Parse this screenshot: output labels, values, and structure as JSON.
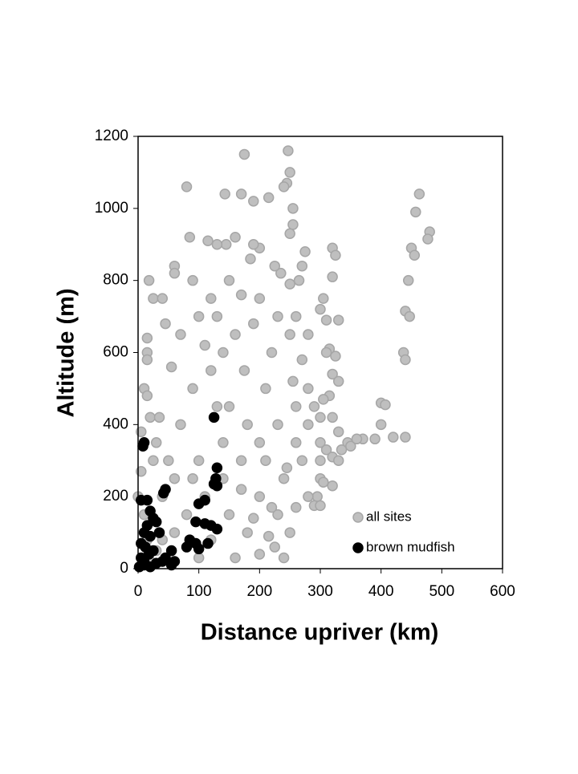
{
  "chart_data": {
    "type": "scatter",
    "xlabel": "Distance upriver (km)",
    "ylabel": "Altitude (m)",
    "xlim": [
      0,
      600
    ],
    "ylim": [
      0,
      1200
    ],
    "xticks": [
      0,
      100,
      200,
      300,
      400,
      500,
      600
    ],
    "yticks": [
      0,
      200,
      400,
      600,
      800,
      1000,
      1200
    ],
    "grid": false,
    "legend": "lower right",
    "series": [
      {
        "name": "all sites",
        "color": "#bfbfbf",
        "x": [
          175,
          247,
          250,
          245,
          240,
          80,
          143,
          170,
          215,
          190,
          255,
          255,
          250,
          463,
          457,
          480,
          477,
          450,
          455,
          445,
          440,
          447,
          437,
          440,
          400,
          407,
          400,
          420,
          440,
          390,
          370,
          345,
          335,
          300,
          310,
          320,
          330,
          300,
          305,
          295,
          290,
          300,
          325,
          315,
          310,
          320,
          330,
          315,
          305,
          320,
          300,
          310,
          330,
          300,
          305,
          320,
          325,
          320,
          275,
          270,
          265,
          250,
          235,
          225,
          200,
          190,
          185,
          160,
          145,
          130,
          115,
          85,
          60,
          60,
          18,
          25,
          40,
          15,
          15,
          15,
          10,
          15,
          5,
          5,
          0,
          45,
          70,
          100,
          130,
          160,
          190,
          220,
          250,
          270,
          280,
          260,
          230,
          200,
          170,
          140,
          110,
          80,
          60,
          40,
          30,
          20,
          50,
          70,
          90,
          120,
          150,
          180,
          210,
          240,
          270,
          200,
          230,
          250,
          180,
          150,
          120,
          100,
          200,
          225,
          160,
          140,
          100,
          60,
          30,
          20,
          40,
          90,
          130,
          110,
          150,
          170,
          200,
          210,
          175,
          120,
          90,
          140,
          55,
          35,
          25,
          10,
          15,
          300,
          280,
          260,
          350,
          360,
          320,
          245,
          220,
          190,
          215,
          260,
          280,
          255,
          230,
          260,
          280,
          330,
          290,
          240,
          170
        ],
        "y": [
          1150,
          1160,
          1100,
          1070,
          1060,
          1060,
          1040,
          1040,
          1030,
          1020,
          1000,
          955,
          930,
          1040,
          990,
          935,
          915,
          890,
          870,
          800,
          715,
          700,
          600,
          580,
          460,
          455,
          400,
          365,
          365,
          360,
          360,
          350,
          330,
          350,
          330,
          310,
          300,
          250,
          240,
          200,
          175,
          175,
          590,
          610,
          600,
          540,
          520,
          480,
          470,
          420,
          420,
          690,
          690,
          720,
          750,
          890,
          870,
          810,
          880,
          840,
          800,
          790,
          820,
          840,
          890,
          900,
          860,
          920,
          900,
          900,
          910,
          920,
          840,
          820,
          800,
          750,
          750,
          640,
          600,
          580,
          500,
          480,
          380,
          270,
          200,
          680,
          650,
          700,
          700,
          650,
          680,
          600,
          650,
          580,
          500,
          450,
          400,
          350,
          300,
          250,
          200,
          150,
          100,
          80,
          50,
          20,
          300,
          400,
          500,
          550,
          450,
          400,
          300,
          250,
          300,
          200,
          150,
          100,
          100,
          150,
          80,
          30,
          40,
          60,
          30,
          350,
          300,
          250,
          350,
          420,
          200,
          250,
          450,
          620,
          800,
          760,
          750,
          500,
          550,
          750,
          800,
          600,
          560,
          420,
          300,
          150,
          80,
          300,
          200,
          350,
          340,
          360,
          230,
          280,
          170,
          140,
          90,
          170,
          400,
          520,
          700,
          700,
          650,
          380,
          450,
          30,
          220
        ]
      },
      {
        "name": "brown mudfish",
        "color": "#000000",
        "x": [
          10,
          8,
          125,
          130,
          128,
          125,
          130,
          45,
          42,
          100,
          110,
          95,
          110,
          120,
          130,
          85,
          95,
          80,
          100,
          115,
          5,
          15,
          20,
          25,
          30,
          15,
          10,
          20,
          5,
          12,
          25,
          18,
          5,
          10,
          30,
          40,
          55,
          45,
          55,
          35,
          10,
          2,
          20,
          60
        ],
        "y": [
          350,
          340,
          420,
          280,
          250,
          235,
          230,
          220,
          210,
          180,
          190,
          130,
          125,
          120,
          110,
          80,
          70,
          60,
          55,
          70,
          190,
          190,
          160,
          140,
          130,
          120,
          100,
          90,
          70,
          60,
          50,
          40,
          30,
          20,
          15,
          20,
          10,
          30,
          50,
          100,
          10,
          5,
          5,
          20
        ]
      }
    ]
  }
}
